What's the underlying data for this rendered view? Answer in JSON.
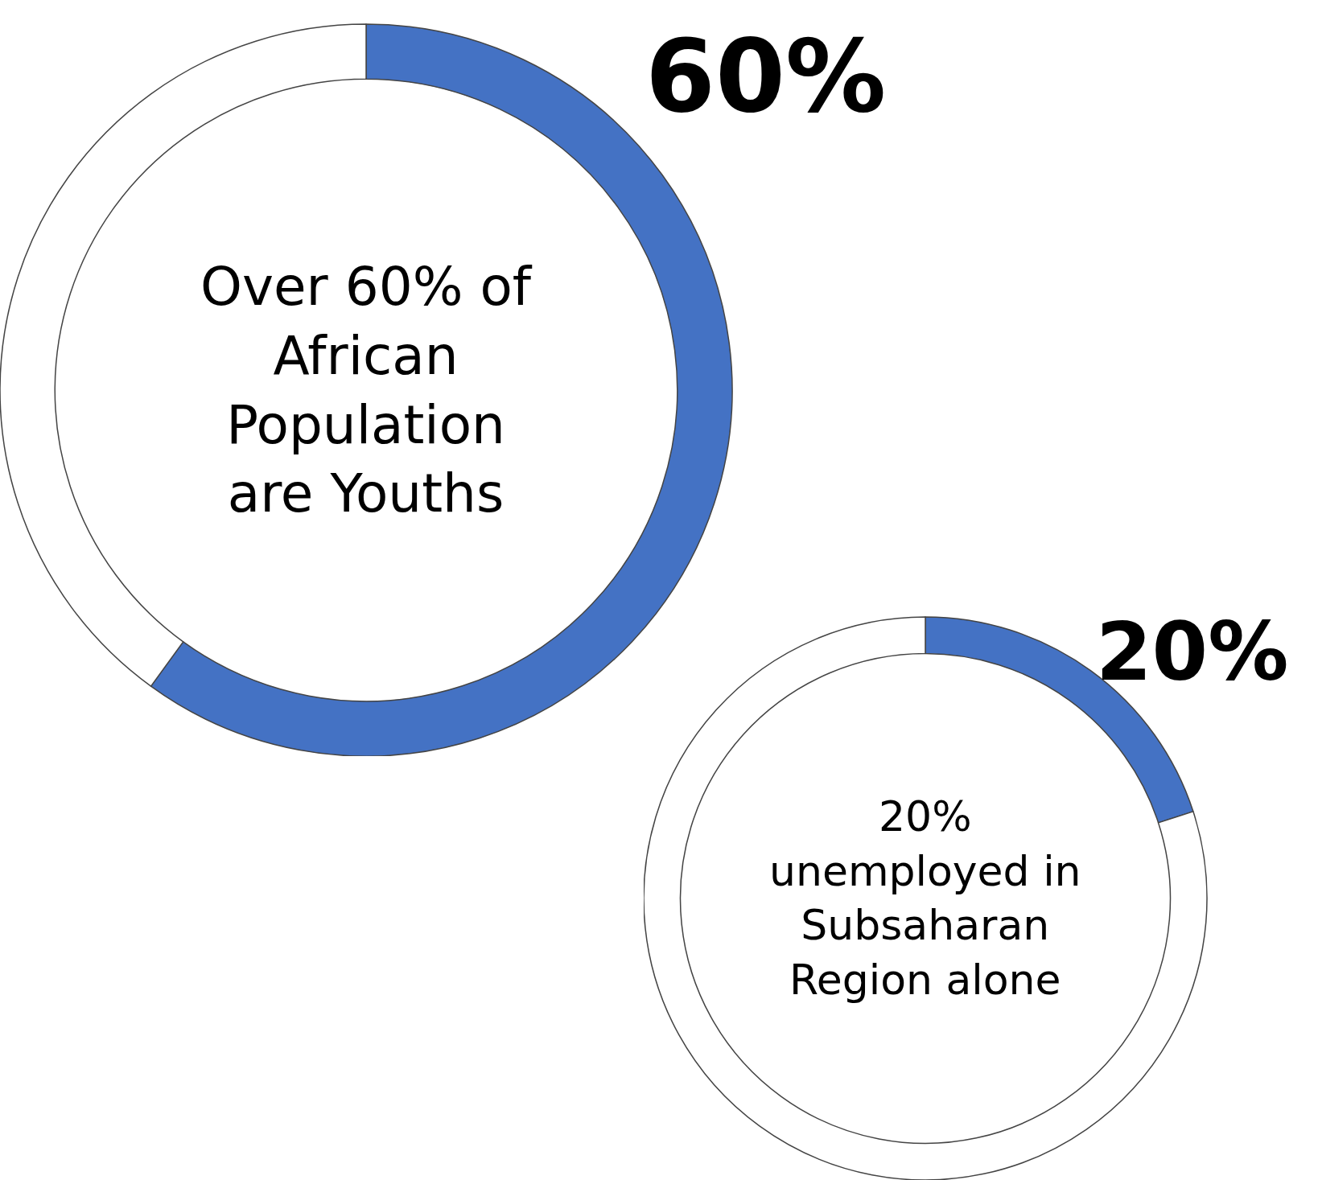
{
  "chart_data": [
    {
      "type": "donut",
      "title": "Over 60% of African Population are Youths",
      "categories": [
        null,
        null
      ],
      "values": [
        60,
        40
      ],
      "colors": [
        "#4472c4",
        "#ffffff"
      ],
      "value_labels": [
        "60%",
        null
      ]
    },
    {
      "type": "donut",
      "title": "20% unemployed in Subsaharan Region alone",
      "categories": [
        null,
        null
      ],
      "values": [
        20,
        80
      ],
      "colors": [
        "#4472c4",
        "#ffffff"
      ],
      "value_labels": [
        "20%",
        null
      ]
    }
  ]
}
